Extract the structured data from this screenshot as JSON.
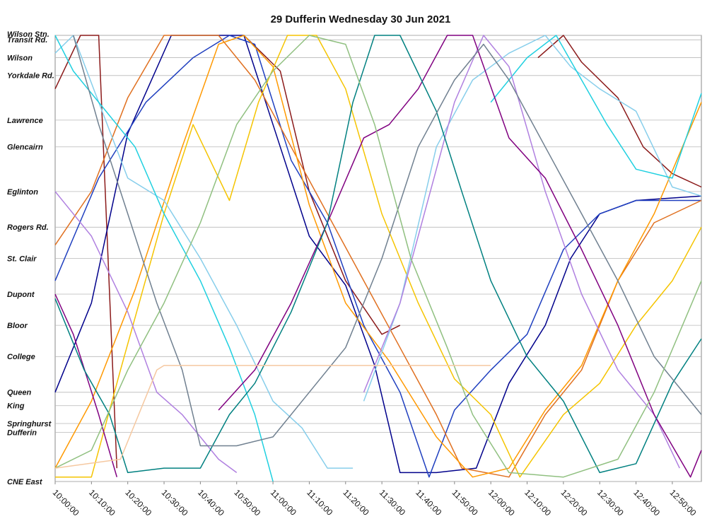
{
  "chart_data": {
    "type": "line",
    "title": "29 Dufferin Wednesday 30 Jun 2021",
    "xlim": [
      "10:00:00",
      "12:58:00"
    ],
    "xticks": [
      "10:00:00",
      "10:10:00",
      "10:20:00",
      "10:30:00",
      "10:40:00",
      "10:50:00",
      "11:00:00",
      "11:10:00",
      "11:20:00",
      "11:30:00",
      "11:40:00",
      "11:50:00",
      "12:00:00",
      "12:10:00",
      "12:20:00",
      "12:30:00",
      "12:40:00",
      "12:50:00"
    ],
    "ylim": [
      0,
      10
    ],
    "yticks": [
      {
        "value": 0,
        "label": "CNE East"
      },
      {
        "value": 1.1,
        "label": "Dufferin"
      },
      {
        "value": 1.3,
        "label": "Springhurst"
      },
      {
        "value": 1.7,
        "label": "King"
      },
      {
        "value": 2.0,
        "label": "Queen"
      },
      {
        "value": 2.8,
        "label": "College"
      },
      {
        "value": 3.5,
        "label": "Bloor"
      },
      {
        "value": 4.2,
        "label": "Dupont"
      },
      {
        "value": 5.0,
        "label": "St. Clair"
      },
      {
        "value": 5.7,
        "label": "Rogers Rd."
      },
      {
        "value": 6.5,
        "label": "Eglinton"
      },
      {
        "value": 7.5,
        "label": "Glencairn"
      },
      {
        "value": 8.1,
        "label": "Lawrence"
      },
      {
        "value": 9.1,
        "label": "Yorkdale Rd."
      },
      {
        "value": 9.5,
        "label": "Wilson"
      },
      {
        "value": 9.9,
        "label": "Transit Rd."
      },
      {
        "value": 10.0,
        "label": "Wilson Stn."
      }
    ],
    "grid": true,
    "series": [
      {
        "color": "#8b1a1a",
        "x": [
          "10:00:00",
          "10:07:00",
          "10:12:00",
          "10:17:00"
        ],
        "values": [
          8.8,
          10,
          10,
          0.3
        ]
      },
      {
        "color": "#8b1a1a",
        "x": [
          "10:52:00",
          "11:02:00",
          "11:10:00",
          "11:20:00",
          "11:30:00",
          "11:35:00"
        ],
        "values": [
          10,
          9.2,
          6.5,
          4.5,
          3.3,
          3.5
        ]
      },
      {
        "color": "#8b1a1a",
        "x": [
          "12:13:00",
          "12:20:00",
          "12:25:00",
          "12:35:00",
          "12:42:00",
          "12:50:00",
          "12:58:00"
        ],
        "values": [
          9.5,
          10,
          9.4,
          8.6,
          7.5,
          6.9,
          6.6
        ]
      },
      {
        "color": "#00008b",
        "x": [
          "10:00:00",
          "10:10:00",
          "10:20:00",
          "10:32:00",
          "10:45:00",
          "10:52:00",
          "11:00:00",
          "11:10:00",
          "11:20:00",
          "11:28:00",
          "11:35:00",
          "11:45:00",
          "11:56:00",
          "12:05:00",
          "12:15:00",
          "12:22:00",
          "12:30:00",
          "12:40:00",
          "12:58:00"
        ],
        "values": [
          2.0,
          4,
          7.8,
          10,
          10,
          10,
          8.0,
          5.5,
          4.4,
          2.6,
          0.2,
          0.2,
          0.3,
          2.2,
          3.5,
          5.0,
          6.0,
          6.3,
          6.4
        ]
      },
      {
        "color": "#1f3fbf",
        "x": [
          "10:00:00",
          "10:12:00",
          "10:25:00",
          "10:38:00",
          "10:48:00",
          "10:55:00",
          "11:05:00",
          "11:15:00",
          "11:25:00",
          "11:35:00",
          "11:43:00",
          "11:50:00",
          "12:00:00",
          "12:10:00",
          "12:20:00",
          "12:30:00",
          "12:40:00",
          "12:58:00"
        ],
        "values": [
          4.5,
          6.8,
          8.5,
          9.5,
          10,
          9.8,
          7.2,
          5.8,
          3.5,
          2.0,
          0.1,
          1.6,
          2.5,
          3.3,
          5.2,
          6.0,
          6.3,
          6.3
        ]
      },
      {
        "color": "#e07020",
        "x": [
          "10:00:00",
          "10:10:00",
          "10:20:00",
          "10:30:00",
          "10:45:00",
          "10:55:00",
          "11:05:00",
          "11:15:00",
          "11:25:00",
          "11:35:00",
          "11:45:00",
          "11:52:00",
          "12:05:00",
          "12:15:00",
          "12:25:00",
          "12:35:00",
          "12:45:00",
          "12:58:00"
        ],
        "values": [
          5.3,
          6.5,
          8.6,
          10,
          10,
          9.0,
          7.5,
          6.0,
          4.5,
          3.0,
          1.5,
          0.3,
          0.1,
          1.5,
          2.5,
          4.5,
          5.8,
          6.3
        ]
      },
      {
        "color": "#ff9900",
        "x": [
          "10:00:00",
          "10:10:00",
          "10:22:00",
          "10:35:00",
          "10:45:00",
          "10:52:00",
          "11:00:00",
          "11:10:00",
          "11:20:00",
          "11:32:00",
          "11:45:00",
          "11:55:00",
          "12:05:00",
          "12:15:00",
          "12:25:00",
          "12:35:00",
          "12:45:00",
          "12:58:00"
        ],
        "values": [
          0.3,
          1.8,
          4.3,
          7.5,
          9.8,
          10,
          9.3,
          6.2,
          4.0,
          2.7,
          1.0,
          0.1,
          0.3,
          1.6,
          2.6,
          4.5,
          6.0,
          8.5
        ]
      },
      {
        "color": "#f5c400",
        "x": [
          "10:00:00",
          "10:10:00",
          "10:18:00",
          "10:30:00",
          "10:38:00",
          "10:48:00",
          "10:56:00",
          "11:04:00",
          "11:12:00",
          "11:20:00",
          "11:30:00",
          "11:40:00",
          "11:50:00",
          "12:00:00",
          "12:08:00",
          "12:20:00",
          "12:30:00",
          "12:40:00",
          "12:50:00",
          "12:58:00"
        ],
        "values": [
          0.1,
          0.1,
          2.5,
          6.0,
          8.0,
          6.3,
          8.5,
          10,
          10,
          8.8,
          6.0,
          4.0,
          2.3,
          1.5,
          0.1,
          1.5,
          2.2,
          3.5,
          4.5,
          5.7
        ]
      },
      {
        "color": "#87ceeb",
        "x": [
          "10:00:00",
          "10:05:00",
          "10:12:00",
          "10:20:00",
          "10:30:00",
          "10:40:00",
          "10:50:00",
          "11:00:00",
          "11:08:00",
          "11:15:00",
          "11:22:00"
        ],
        "values": [
          9.6,
          10,
          8.5,
          6.8,
          6.3,
          5.0,
          3.5,
          1.8,
          1.2,
          0.3,
          0.3
        ]
      },
      {
        "color": "#87ceeb",
        "x": [
          "11:25:00",
          "11:35:00",
          "11:45:00",
          "11:55:00",
          "12:05:00",
          "12:15:00",
          "12:22:00",
          "12:30:00",
          "12:40:00",
          "12:50:00",
          "12:58:00"
        ],
        "values": [
          1.8,
          4.0,
          7.5,
          9.0,
          9.6,
          10,
          9.3,
          8.8,
          8.3,
          6.6,
          6.4
        ]
      },
      {
        "color": "#20d0e0",
        "x": [
          "10:00:00",
          "10:05:00",
          "10:12:00",
          "10:22:00",
          "10:30:00",
          "10:40:00",
          "10:48:00",
          "10:55:00",
          "11:00:00"
        ],
        "values": [
          10,
          9.2,
          8.5,
          7.5,
          6.0,
          4.5,
          3.0,
          1.5,
          0.0
        ]
      },
      {
        "color": "#20d0e0",
        "x": [
          "12:00:00",
          "12:10:00",
          "12:18:00",
          "12:25:00",
          "12:32:00",
          "12:40:00",
          "12:50:00",
          "12:58:00"
        ],
        "values": [
          8.5,
          9.5,
          10,
          9.0,
          8.0,
          7.0,
          6.8,
          8.7
        ]
      },
      {
        "color": "#b080e0",
        "x": [
          "10:00:00",
          "10:10:00",
          "10:20:00",
          "10:28:00",
          "10:35:00",
          "10:45:00",
          "10:50:00"
        ],
        "values": [
          6.5,
          5.5,
          3.8,
          2.0,
          1.5,
          0.5,
          0.2
        ]
      },
      {
        "color": "#b080e0",
        "x": [
          "11:25:00",
          "11:35:00",
          "11:45:00",
          "11:50:00",
          "11:58:00",
          "12:05:00",
          "12:15:00",
          "12:25:00",
          "12:35:00",
          "12:45:00",
          "12:52:00"
        ],
        "values": [
          2.0,
          4.0,
          7.0,
          8.5,
          10,
          9.3,
          6.5,
          4.2,
          2.5,
          1.5,
          0.3
        ]
      },
      {
        "color": "#800080",
        "x": [
          "10:00:00",
          "10:05:00",
          "10:12:00",
          "10:17:00"
        ],
        "values": [
          4.2,
          3.3,
          1.5,
          0.1
        ]
      },
      {
        "color": "#800080",
        "x": [
          "10:45:00",
          "10:55:00",
          "11:05:00",
          "11:15:00",
          "11:25:00",
          "11:32:00",
          "11:40:00",
          "11:48:00",
          "11:55:00",
          "12:05:00",
          "12:15:00",
          "12:25:00",
          "12:35:00",
          "12:45:00",
          "12:55:00",
          "12:58:00"
        ],
        "values": [
          1.6,
          2.5,
          4.0,
          5.8,
          7.7,
          8.0,
          8.8,
          10,
          10,
          7.7,
          6.8,
          5.2,
          3.5,
          1.5,
          0.1,
          0.7
        ]
      },
      {
        "color": "#008080",
        "x": [
          "10:00:00",
          "10:08:00",
          "10:15:00",
          "10:20:00",
          "10:30:00",
          "10:40:00",
          "10:48:00",
          "10:55:00",
          "11:05:00",
          "11:15:00",
          "11:22:00",
          "11:28:00",
          "11:35:00",
          "11:45:00",
          "11:52:00",
          "12:00:00",
          "12:10:00",
          "12:20:00",
          "12:30:00",
          "12:40:00",
          "12:50:00",
          "12:58:00"
        ],
        "values": [
          4.1,
          2.5,
          1.5,
          0.2,
          0.3,
          0.3,
          1.5,
          2.2,
          3.8,
          5.8,
          8.5,
          10,
          10,
          8.3,
          6.5,
          4.5,
          2.8,
          1.8,
          0.2,
          0.4,
          2.2,
          3.2
        ]
      },
      {
        "color": "#708090",
        "x": [
          "10:05:00",
          "10:12:00",
          "10:20:00",
          "10:28:00",
          "10:35:00",
          "10:40:00",
          "10:50:00",
          "11:00:00",
          "11:10:00",
          "11:20:00",
          "11:30:00",
          "11:40:00",
          "11:50:00",
          "11:58:00",
          "12:05:00",
          "12:15:00",
          "12:25:00",
          "12:35:00",
          "12:45:00",
          "12:58:00"
        ],
        "values": [
          10,
          8.0,
          6.0,
          4.0,
          2.5,
          0.8,
          0.8,
          1.0,
          2.0,
          3.0,
          5.0,
          7.5,
          9.0,
          9.8,
          9.0,
          7.5,
          6.0,
          4.5,
          2.8,
          1.5
        ]
      },
      {
        "color": "#90c080",
        "x": [
          "10:00:00",
          "10:10:00",
          "10:20:00",
          "10:30:00",
          "10:40:00",
          "10:50:00",
          "11:00:00",
          "11:10:00",
          "11:20:00",
          "11:28:00",
          "11:38:00",
          "11:48:00",
          "11:55:00",
          "12:05:00",
          "12:20:00",
          "12:35:00",
          "12:45:00",
          "12:58:00"
        ],
        "values": [
          0.3,
          0.7,
          2.5,
          4.0,
          5.8,
          8.0,
          9.2,
          10,
          9.8,
          8.0,
          5.0,
          3.0,
          1.5,
          0.2,
          0.1,
          0.5,
          2.0,
          4.5
        ]
      },
      {
        "color": "#f5c8a0",
        "x": [
          "10:00:00",
          "10:18:00",
          "10:28:00",
          "10:30:00",
          "11:00:00",
          "11:30:00",
          "12:00:00"
        ],
        "values": [
          0.3,
          0.5,
          2.5,
          2.6,
          2.6,
          2.6,
          2.6
        ]
      }
    ]
  }
}
